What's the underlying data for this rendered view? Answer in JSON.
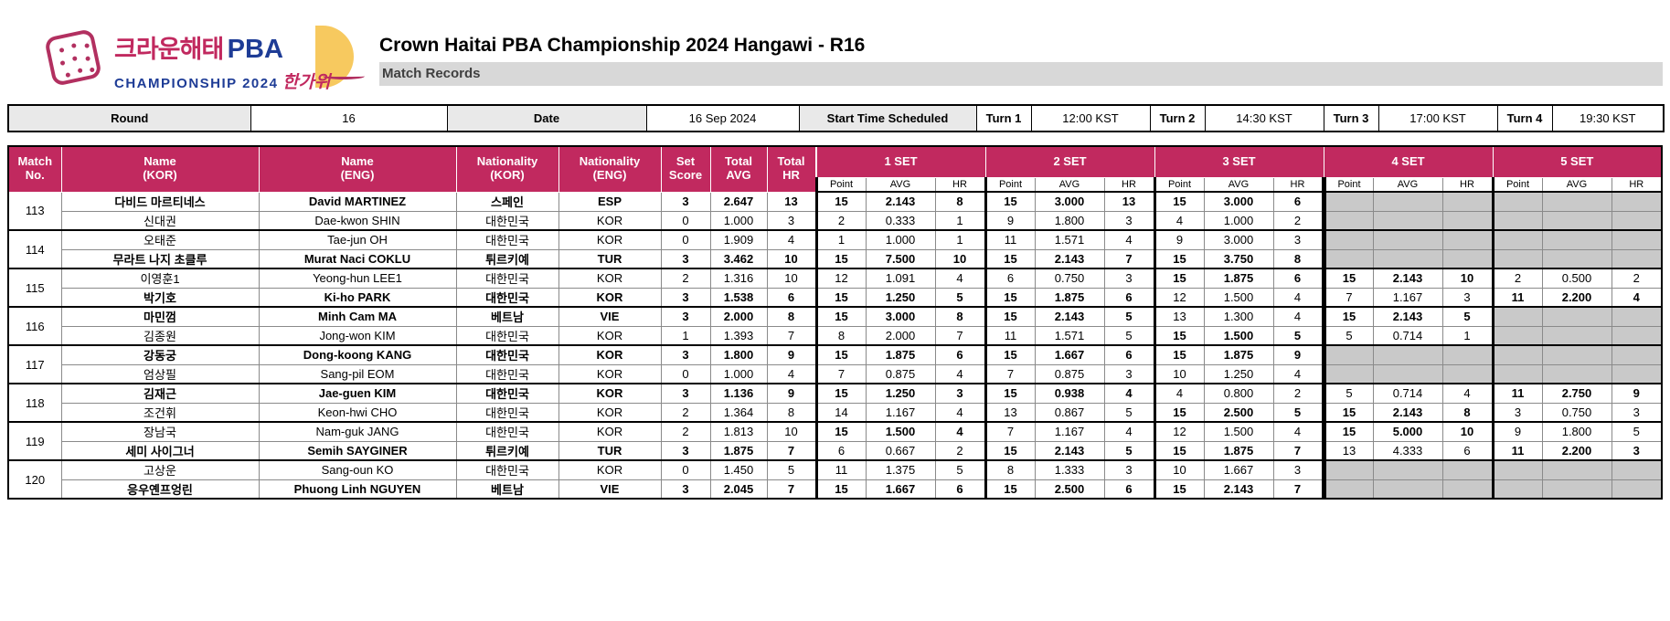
{
  "logo": {
    "brand_kor": "크라운해태",
    "brand_pba": "PBA",
    "brand_champ": "CHAMPIONSHIP 2024",
    "brand_hangawi": "한가위"
  },
  "header": {
    "title": "Crown Haitai PBA Championship 2024 Hangawi - R16",
    "subtitle": "Match Records"
  },
  "info": {
    "round_label": "Round",
    "round_value": "16",
    "date_label": "Date",
    "date_value": "16 Sep 2024",
    "start_label": "Start Time Scheduled",
    "turns": [
      {
        "label": "Turn 1",
        "time": "12:00 KST"
      },
      {
        "label": "Turn 2",
        "time": "14:30 KST"
      },
      {
        "label": "Turn 3",
        "time": "17:00 KST"
      },
      {
        "label": "Turn 4",
        "time": "19:30 KST"
      }
    ]
  },
  "colors": {
    "header_magenta": "#c1295f",
    "empty_cell_gray": "#c9c9c9",
    "label_gray": "#e9e9e9",
    "subtitle_gray": "#d8d8d8",
    "logo_navy": "#1e3c96",
    "logo_yellow": "#f7c95f"
  },
  "table": {
    "left_headers": [
      "Match\nNo.",
      "Name\n(KOR)",
      "Name\n(ENG)",
      "Nationality\n(KOR)",
      "Nationality\n(ENG)",
      "Set\nScore",
      "Total\nAVG",
      "Total\nHR"
    ],
    "set_headers": [
      "1 SET",
      "2 SET",
      "3 SET",
      "4 SET",
      "5 SET"
    ],
    "set_sub_headers": [
      "Point",
      "AVG",
      "HR"
    ],
    "matches": [
      {
        "no": "113",
        "players": [
          {
            "kor": "다비드 마르티네스",
            "eng": "David MARTINEZ",
            "nat_kor": "스페인",
            "nat_eng": "ESP",
            "score": "3",
            "avg": "2.647",
            "hr": "13",
            "winner": true,
            "sets": [
              [
                "15",
                "2.143",
                "8",
                1
              ],
              [
                "15",
                "3.000",
                "13",
                1
              ],
              [
                "15",
                "3.000",
                "6",
                1
              ],
              null,
              null
            ]
          },
          {
            "kor": "신대권",
            "eng": "Dae-kwon SHIN",
            "nat_kor": "대한민국",
            "nat_eng": "KOR",
            "score": "0",
            "avg": "1.000",
            "hr": "3",
            "winner": false,
            "sets": [
              [
                "2",
                "0.333",
                "1",
                0
              ],
              [
                "9",
                "1.800",
                "3",
                0
              ],
              [
                "4",
                "1.000",
                "2",
                0
              ],
              null,
              null
            ]
          }
        ]
      },
      {
        "no": "114",
        "players": [
          {
            "kor": "오태준",
            "eng": "Tae-jun OH",
            "nat_kor": "대한민국",
            "nat_eng": "KOR",
            "score": "0",
            "avg": "1.909",
            "hr": "4",
            "winner": false,
            "sets": [
              [
                "1",
                "1.000",
                "1",
                0
              ],
              [
                "11",
                "1.571",
                "4",
                0
              ],
              [
                "9",
                "3.000",
                "3",
                0
              ],
              null,
              null
            ]
          },
          {
            "kor": "무라트 나지 초클루",
            "eng": "Murat Naci COKLU",
            "nat_kor": "튀르키예",
            "nat_eng": "TUR",
            "score": "3",
            "avg": "3.462",
            "hr": "10",
            "winner": true,
            "sets": [
              [
                "15",
                "7.500",
                "10",
                1
              ],
              [
                "15",
                "2.143",
                "7",
                1
              ],
              [
                "15",
                "3.750",
                "8",
                1
              ],
              null,
              null
            ]
          }
        ]
      },
      {
        "no": "115",
        "players": [
          {
            "kor": "이영훈1",
            "eng": "Yeong-hun LEE1",
            "nat_kor": "대한민국",
            "nat_eng": "KOR",
            "score": "2",
            "avg": "1.316",
            "hr": "10",
            "winner": false,
            "sets": [
              [
                "12",
                "1.091",
                "4",
                0
              ],
              [
                "6",
                "0.750",
                "3",
                0
              ],
              [
                "15",
                "1.875",
                "6",
                1
              ],
              [
                "15",
                "2.143",
                "10",
                1
              ],
              [
                "2",
                "0.500",
                "2",
                0
              ]
            ]
          },
          {
            "kor": "박기호",
            "eng": "Ki-ho PARK",
            "nat_kor": "대한민국",
            "nat_eng": "KOR",
            "score": "3",
            "avg": "1.538",
            "hr": "6",
            "winner": true,
            "sets": [
              [
                "15",
                "1.250",
                "5",
                1
              ],
              [
                "15",
                "1.875",
                "6",
                1
              ],
              [
                "12",
                "1.500",
                "4",
                0
              ],
              [
                "7",
                "1.167",
                "3",
                0
              ],
              [
                "11",
                "2.200",
                "4",
                1
              ]
            ]
          }
        ]
      },
      {
        "no": "116",
        "players": [
          {
            "kor": "마민껌",
            "eng": "Minh Cam MA",
            "nat_kor": "베트남",
            "nat_eng": "VIE",
            "score": "3",
            "avg": "2.000",
            "hr": "8",
            "winner": true,
            "sets": [
              [
                "15",
                "3.000",
                "8",
                1
              ],
              [
                "15",
                "2.143",
                "5",
                1
              ],
              [
                "13",
                "1.300",
                "4",
                0
              ],
              [
                "15",
                "2.143",
                "5",
                1
              ],
              null
            ]
          },
          {
            "kor": "김종원",
            "eng": "Jong-won KIM",
            "nat_kor": "대한민국",
            "nat_eng": "KOR",
            "score": "1",
            "avg": "1.393",
            "hr": "7",
            "winner": false,
            "sets": [
              [
                "8",
                "2.000",
                "7",
                0
              ],
              [
                "11",
                "1.571",
                "5",
                0
              ],
              [
                "15",
                "1.500",
                "5",
                1
              ],
              [
                "5",
                "0.714",
                "1",
                0
              ],
              null
            ]
          }
        ]
      },
      {
        "no": "117",
        "players": [
          {
            "kor": "강동궁",
            "eng": "Dong-koong KANG",
            "nat_kor": "대한민국",
            "nat_eng": "KOR",
            "score": "3",
            "avg": "1.800",
            "hr": "9",
            "winner": true,
            "sets": [
              [
                "15",
                "1.875",
                "6",
                1
              ],
              [
                "15",
                "1.667",
                "6",
                1
              ],
              [
                "15",
                "1.875",
                "9",
                1
              ],
              null,
              null
            ]
          },
          {
            "kor": "엄상필",
            "eng": "Sang-pil EOM",
            "nat_kor": "대한민국",
            "nat_eng": "KOR",
            "score": "0",
            "avg": "1.000",
            "hr": "4",
            "winner": false,
            "sets": [
              [
                "7",
                "0.875",
                "4",
                0
              ],
              [
                "7",
                "0.875",
                "3",
                0
              ],
              [
                "10",
                "1.250",
                "4",
                0
              ],
              null,
              null
            ]
          }
        ]
      },
      {
        "no": "118",
        "players": [
          {
            "kor": "김재근",
            "eng": "Jae-guen KIM",
            "nat_kor": "대한민국",
            "nat_eng": "KOR",
            "score": "3",
            "avg": "1.136",
            "hr": "9",
            "winner": true,
            "sets": [
              [
                "15",
                "1.250",
                "3",
                1
              ],
              [
                "15",
                "0.938",
                "4",
                1
              ],
              [
                "4",
                "0.800",
                "2",
                0
              ],
              [
                "5",
                "0.714",
                "4",
                0
              ],
              [
                "11",
                "2.750",
                "9",
                1
              ]
            ]
          },
          {
            "kor": "조건휘",
            "eng": "Keon-hwi CHO",
            "nat_kor": "대한민국",
            "nat_eng": "KOR",
            "score": "2",
            "avg": "1.364",
            "hr": "8",
            "winner": false,
            "sets": [
              [
                "14",
                "1.167",
                "4",
                0
              ],
              [
                "13",
                "0.867",
                "5",
                0
              ],
              [
                "15",
                "2.500",
                "5",
                1
              ],
              [
                "15",
                "2.143",
                "8",
                1
              ],
              [
                "3",
                "0.750",
                "3",
                0
              ]
            ]
          }
        ]
      },
      {
        "no": "119",
        "players": [
          {
            "kor": "장남국",
            "eng": "Nam-guk JANG",
            "nat_kor": "대한민국",
            "nat_eng": "KOR",
            "score": "2",
            "avg": "1.813",
            "hr": "10",
            "winner": false,
            "sets": [
              [
                "15",
                "1.500",
                "4",
                1
              ],
              [
                "7",
                "1.167",
                "4",
                0
              ],
              [
                "12",
                "1.500",
                "4",
                0
              ],
              [
                "15",
                "5.000",
                "10",
                1
              ],
              [
                "9",
                "1.800",
                "5",
                0
              ]
            ]
          },
          {
            "kor": "세미 사이그너",
            "eng": "Semih SAYGINER",
            "nat_kor": "튀르키예",
            "nat_eng": "TUR",
            "score": "3",
            "avg": "1.875",
            "hr": "7",
            "winner": true,
            "sets": [
              [
                "6",
                "0.667",
                "2",
                0
              ],
              [
                "15",
                "2.143",
                "5",
                1
              ],
              [
                "15",
                "1.875",
                "7",
                1
              ],
              [
                "13",
                "4.333",
                "6",
                0
              ],
              [
                "11",
                "2.200",
                "3",
                1
              ]
            ]
          }
        ]
      },
      {
        "no": "120",
        "players": [
          {
            "kor": "고상운",
            "eng": "Sang-oun KO",
            "nat_kor": "대한민국",
            "nat_eng": "KOR",
            "score": "0",
            "avg": "1.450",
            "hr": "5",
            "winner": false,
            "sets": [
              [
                "11",
                "1.375",
                "5",
                0
              ],
              [
                "8",
                "1.333",
                "3",
                0
              ],
              [
                "10",
                "1.667",
                "3",
                0
              ],
              null,
              null
            ]
          },
          {
            "kor": "응우옌프엉린",
            "eng": "Phuong Linh NGUYEN",
            "nat_kor": "베트남",
            "nat_eng": "VIE",
            "score": "3",
            "avg": "2.045",
            "hr": "7",
            "winner": true,
            "sets": [
              [
                "15",
                "1.667",
                "6",
                1
              ],
              [
                "15",
                "2.500",
                "6",
                1
              ],
              [
                "15",
                "2.143",
                "7",
                1
              ],
              null,
              null
            ]
          }
        ]
      }
    ]
  }
}
